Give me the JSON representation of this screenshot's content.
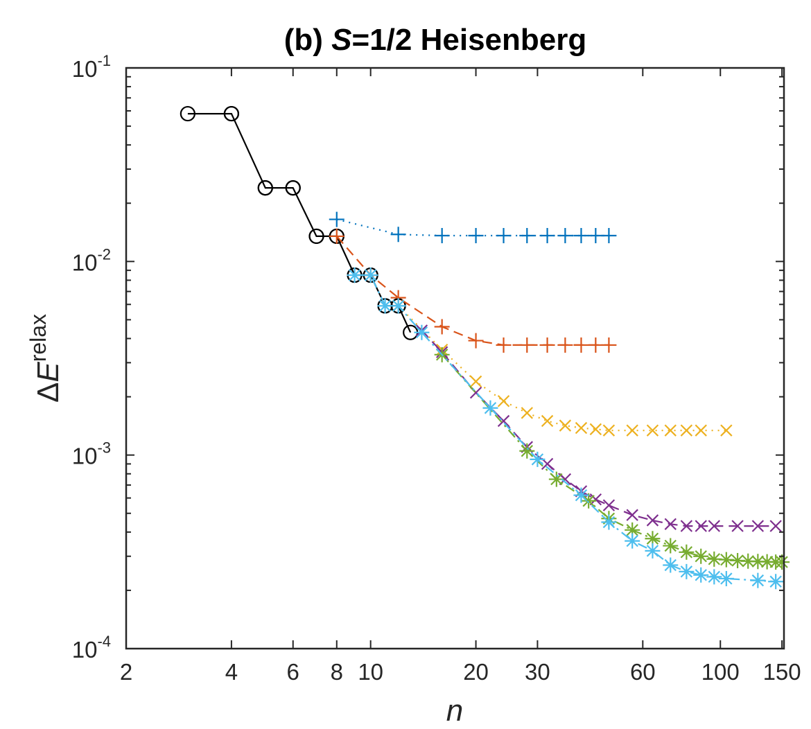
{
  "chart_data": {
    "type": "line",
    "title": {
      "prefix": "(b) ",
      "italic": "S",
      "suffix": "=1/2 Heisenberg"
    },
    "xlabel": "n",
    "ylabel": {
      "base": "Δ",
      "italic": "E",
      "sup": "relax"
    },
    "xscale": "log",
    "yscale": "log",
    "xlim": [
      2,
      152
    ],
    "ylim": [
      0.0001,
      0.1
    ],
    "grid": false,
    "legend": "none",
    "x_ticks": [
      2,
      4,
      6,
      8,
      10,
      20,
      30,
      60,
      100,
      150
    ],
    "x_tick_labels": [
      "2",
      "4",
      "6",
      "8",
      "10",
      "20",
      "30",
      "60",
      "100",
      "150"
    ],
    "y_ticks": [
      0.0001,
      0.001,
      0.01,
      0.1
    ],
    "y_tick_labels": [
      {
        "base": "10",
        "exp": "-4"
      },
      {
        "base": "10",
        "exp": "-3"
      },
      {
        "base": "10",
        "exp": "-2"
      },
      {
        "base": "10",
        "exp": "-1"
      }
    ],
    "series": [
      {
        "color": "#000000",
        "marker": "circle",
        "dash": "solid",
        "x": [
          3,
          4,
          4,
          5,
          5,
          6,
          6,
          7,
          7,
          8,
          8,
          9,
          9,
          10,
          10,
          11,
          11,
          12,
          12,
          13
        ],
        "y": [
          0.058,
          0.058,
          0.058,
          0.024,
          0.024,
          0.024,
          0.024,
          0.0135,
          0.0135,
          0.0135,
          0.0135,
          0.0085,
          0.0085,
          0.0085,
          0.0085,
          0.0059,
          0.0059,
          0.0059,
          0.0059,
          0.0043
        ]
      },
      {
        "color": "#0072BD",
        "marker": "plus",
        "dash": "dotted",
        "x": [
          8,
          12,
          16,
          20,
          24,
          28,
          32,
          36,
          40,
          44,
          48
        ],
        "y": [
          0.0165,
          0.0138,
          0.0136,
          0.0136,
          0.0136,
          0.0136,
          0.0136,
          0.0136,
          0.0136,
          0.0136,
          0.0136
        ]
      },
      {
        "color": "#D95319",
        "marker": "plus",
        "dash": "dashed",
        "x": [
          8,
          10,
          12,
          16,
          20,
          24,
          28,
          32,
          36,
          40,
          44,
          48
        ],
        "y": [
          0.0135,
          0.0085,
          0.0065,
          0.0046,
          0.0039,
          0.0037,
          0.0037,
          0.0037,
          0.0037,
          0.0037,
          0.0037,
          0.0037
        ]
      },
      {
        "color": "#EDB120",
        "marker": "x",
        "dash": "dotted",
        "x": [
          12,
          16,
          20,
          24,
          28,
          32,
          36,
          40,
          44,
          48,
          56,
          64,
          72,
          80,
          88,
          104
        ],
        "y": [
          0.0059,
          0.0035,
          0.0024,
          0.0019,
          0.00165,
          0.0015,
          0.00142,
          0.00138,
          0.00136,
          0.00134,
          0.00134,
          0.00134,
          0.00134,
          0.00134,
          0.00134,
          0.00134
        ]
      },
      {
        "color": "#7E2F8E",
        "marker": "x",
        "dash": "dashed",
        "x": [
          14,
          16,
          20,
          24,
          28,
          32,
          36,
          40,
          44,
          48,
          56,
          64,
          72,
          80,
          88,
          96,
          112,
          128,
          144
        ],
        "y": [
          0.0044,
          0.0034,
          0.0021,
          0.0015,
          0.0011,
          0.0009,
          0.00075,
          0.00065,
          0.00059,
          0.00055,
          0.00049,
          0.00046,
          0.00044,
          0.00043,
          0.00043,
          0.00043,
          0.00043,
          0.00043,
          0.00043
        ]
      },
      {
        "color": "#77AC30",
        "marker": "asterisk",
        "dash": "dashdot",
        "x": [
          16,
          28,
          34,
          42,
          48,
          56,
          64,
          72,
          80,
          88,
          96,
          104,
          112,
          120,
          128,
          136,
          144,
          150
        ],
        "y": [
          0.0033,
          0.00105,
          0.00075,
          0.00058,
          0.00047,
          0.00041,
          0.00037,
          0.00034,
          0.000315,
          0.0003,
          0.00029,
          0.000288,
          0.000285,
          0.000283,
          0.000282,
          0.000281,
          0.00028,
          0.00028
        ]
      },
      {
        "color": "#4DBEEE",
        "marker": "asterisk",
        "dash": "dashdot",
        "x": [
          9,
          10,
          11,
          12,
          14,
          22,
          30,
          40,
          48,
          56,
          64,
          72,
          80,
          88,
          96,
          104,
          128,
          144
        ],
        "y": [
          0.0085,
          0.0085,
          0.0059,
          0.0059,
          0.0043,
          0.00175,
          0.00095,
          0.00062,
          0.00045,
          0.00036,
          0.00032,
          0.00027,
          0.00025,
          0.00024,
          0.000235,
          0.00023,
          0.000225,
          0.000222
        ]
      }
    ]
  }
}
